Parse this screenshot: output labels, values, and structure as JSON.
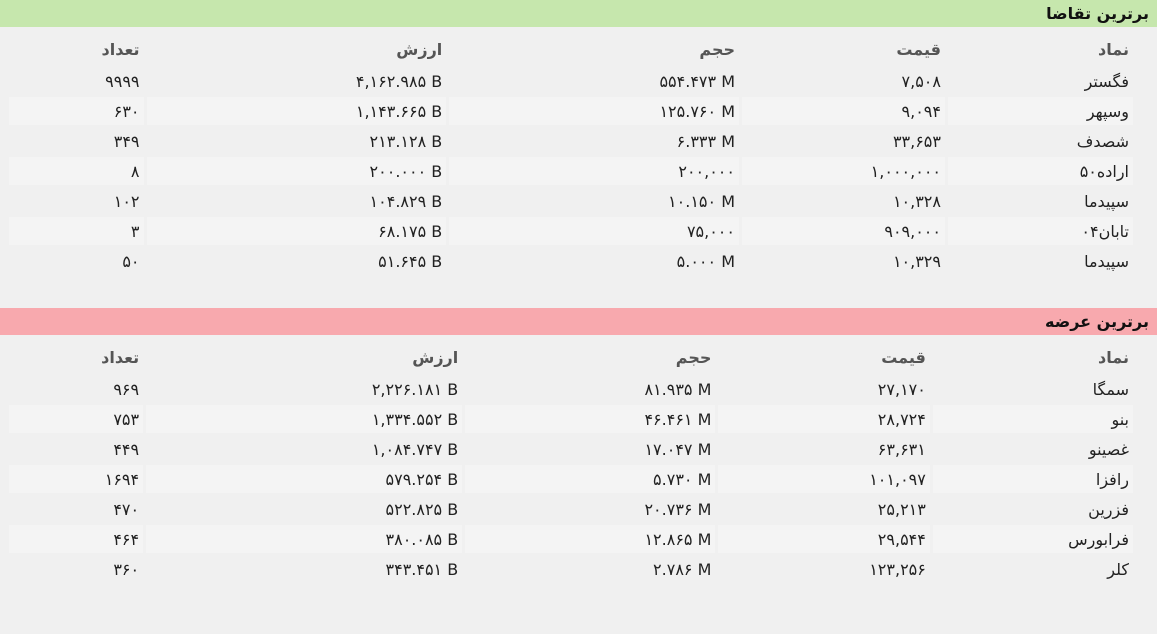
{
  "panels": [
    {
      "title": "برترین تقاضا",
      "columns": [
        "نماد",
        "قیمت",
        "حجم",
        "ارزش",
        "تعداد"
      ],
      "rows": [
        [
          "فگستر",
          "۷,۵۰۸",
          "۵۵۴.۴۷۳ M",
          "۴,۱۶۲.۹۸۵ B",
          "۹۹۹۹"
        ],
        [
          "وسپهر",
          "۹,۰۹۴",
          "۱۲۵.۷۶۰ M",
          "۱,۱۴۳.۶۶۵ B",
          "۶۳۰"
        ],
        [
          "شصدف",
          "۳۳,۶۵۳",
          "۶.۳۳۳ M",
          "۲۱۳.۱۲۸ B",
          "۳۴۹"
        ],
        [
          "اراده۵۰",
          "۱,۰۰۰,۰۰۰",
          "۲۰۰,۰۰۰",
          "۲۰۰.۰۰۰ B",
          "۸"
        ],
        [
          "سپیدما",
          "۱۰,۳۲۸",
          "۱۰.۱۵۰ M",
          "۱۰۴.۸۲۹ B",
          "۱۰۲"
        ],
        [
          "تابان۰۴",
          "۹۰۹,۰۰۰",
          "۷۵,۰۰۰",
          "۶۸.۱۷۵ B",
          "۳"
        ],
        [
          "سپیدما",
          "۱۰,۳۲۹",
          "۵.۰۰۰ M",
          "۵۱.۶۴۵ B",
          "۵۰"
        ]
      ]
    },
    {
      "title": "برترین عرضه",
      "columns": [
        "نماد",
        "قیمت",
        "حجم",
        "ارزش",
        "تعداد"
      ],
      "rows": [
        [
          "سمگا",
          "۲۷,۱۷۰",
          "۸۱.۹۳۵ M",
          "۲,۲۲۶.۱۸۱ B",
          "۹۶۹"
        ],
        [
          "بنو",
          "۲۸,۷۲۴",
          "۴۶.۴۶۱ M",
          "۱,۳۳۴.۵۵۲ B",
          "۷۵۳"
        ],
        [
          "غصینو",
          "۶۳,۶۳۱",
          "۱۷.۰۴۷ M",
          "۱,۰۸۴.۷۴۷ B",
          "۴۴۹"
        ],
        [
          "رافزا",
          "۱۰۱,۰۹۷",
          "۵.۷۳۰ M",
          "۵۷۹.۲۵۴ B",
          "۱۶۹۴"
        ],
        [
          "فزرین",
          "۲۵,۲۱۳",
          "۲۰.۷۳۶ M",
          "۵۲۲.۸۲۵ B",
          "۴۷۰"
        ],
        [
          "فرابورس",
          "۲۹,۵۴۴",
          "۱۲.۸۶۵ M",
          "۳۸۰.۰۸۵ B",
          "۴۶۴"
        ],
        [
          "کلر",
          "۱۲۳,۲۵۶",
          "۲.۷۸۶ M",
          "۳۴۳.۴۵۱ B",
          "۳۶۰"
        ]
      ]
    }
  ]
}
